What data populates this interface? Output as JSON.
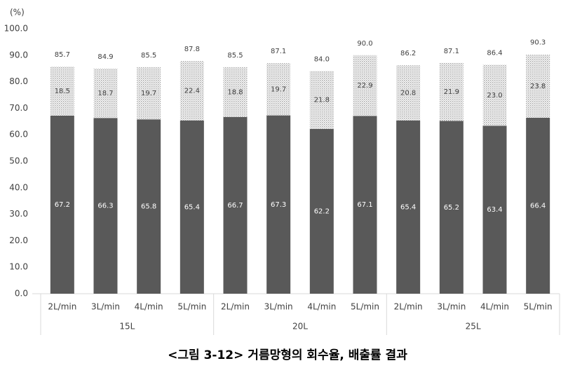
{
  "chart_data": {
    "type": "stacked_bar",
    "title": "<그림 3-12> 거름망형의 회수율, 배출률 결과",
    "y_unit": "(%)",
    "categories": [
      "2L/min",
      "3L/min",
      "4L/min",
      "5L/min",
      "2L/min",
      "3L/min",
      "4L/min",
      "5L/min",
      "2L/min",
      "3L/min",
      "4L/min",
      "5L/min"
    ],
    "groups": [
      "15L",
      "20L",
      "25L"
    ],
    "series": [
      {
        "color": "#595959",
        "values": [
          67.2,
          66.3,
          65.8,
          65.4,
          66.7,
          67.3,
          62.2,
          67.1,
          65.4,
          65.2,
          63.4,
          66.4
        ],
        "value_labels": [
          "67.2",
          "66.3",
          "65.8",
          "65.4",
          "66.7",
          "67.3",
          "62.2",
          "67.1",
          "65.4",
          "65.2",
          "63.4",
          "66.4"
        ]
      },
      {
        "color": "#a6a6a6",
        "values": [
          18.5,
          18.7,
          19.7,
          22.4,
          18.8,
          19.7,
          21.8,
          22.9,
          20.8,
          21.9,
          23.0,
          23.8
        ],
        "value_labels": [
          "18.5",
          "18.7",
          "19.7",
          "22.4",
          "18.8",
          "19.7",
          "21.8",
          "22.9",
          "20.8",
          "21.9",
          "23.0",
          "23.8"
        ]
      }
    ],
    "totals": {
      "values": [
        85.7,
        84.9,
        85.5,
        87.8,
        85.5,
        87.1,
        84.0,
        90.0,
        86.2,
        87.1,
        86.4,
        90.3
      ],
      "value_labels": [
        "85.7",
        "84.9",
        "85.5",
        "87.8",
        "85.5",
        "87.1",
        "84.0",
        "90.0",
        "86.2",
        "87.1",
        "86.4",
        "90.3"
      ]
    },
    "ylim": [
      0,
      100
    ],
    "yticks": [
      {
        "value": 0,
        "label": "0.0"
      },
      {
        "value": 10,
        "label": "10.0"
      },
      {
        "value": 20,
        "label": "20.0"
      },
      {
        "value": 30,
        "label": "30.0"
      },
      {
        "value": 40,
        "label": "40.0"
      },
      {
        "value": 50,
        "label": "50.0"
      },
      {
        "value": 60,
        "label": "60.0"
      },
      {
        "value": 70,
        "label": "70.0"
      },
      {
        "value": 80,
        "label": "80.0"
      },
      {
        "value": 90,
        "label": "90.0"
      },
      {
        "value": 100,
        "label": "100.0"
      }
    ]
  }
}
